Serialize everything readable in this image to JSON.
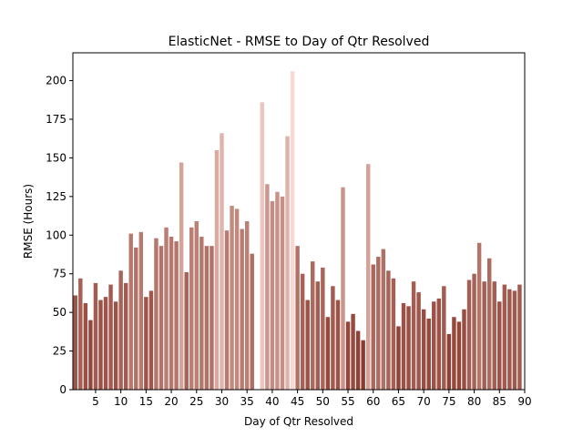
{
  "chart_data": {
    "type": "bar",
    "title": "ElasticNet - RMSE to Day of Qtr Resolved",
    "xlabel": "Day of Qtr Resolved",
    "ylabel": "RMSE (Hours)",
    "xlim": [
      0.5,
      90
    ],
    "ylim": [
      0,
      218
    ],
    "grid": false,
    "legend": "none",
    "x_ticks": [
      5,
      10,
      15,
      20,
      25,
      30,
      35,
      40,
      45,
      50,
      55,
      60,
      65,
      70,
      75,
      80,
      85,
      90
    ],
    "y_ticks": [
      0,
      25,
      50,
      75,
      100,
      125,
      150,
      175,
      200
    ],
    "x": [
      1,
      2,
      3,
      4,
      5,
      6,
      7,
      8,
      9,
      10,
      11,
      12,
      13,
      14,
      15,
      16,
      17,
      18,
      19,
      20,
      21,
      22,
      23,
      24,
      25,
      26,
      27,
      28,
      29,
      30,
      31,
      32,
      33,
      34,
      35,
      36,
      37,
      38,
      39,
      40,
      41,
      42,
      43,
      44,
      45,
      46,
      47,
      48,
      49,
      50,
      51,
      52,
      53,
      54,
      55,
      56,
      57,
      58,
      59,
      60,
      61,
      62,
      63,
      64,
      65,
      66,
      67,
      68,
      69,
      70,
      71,
      72,
      73,
      74,
      75,
      76,
      77,
      78,
      79,
      80,
      81,
      82,
      83,
      84,
      85,
      86,
      87,
      88,
      89
    ],
    "values": [
      61,
      72,
      56,
      45,
      69,
      58,
      60,
      68,
      57,
      77,
      69,
      101,
      92,
      102,
      60,
      64,
      98,
      93,
      105,
      99,
      96,
      147,
      76,
      105,
      109,
      99,
      93,
      93,
      155,
      166,
      103,
      119,
      117,
      104,
      109,
      88,
      0,
      186,
      133,
      122,
      128,
      125,
      164,
      206,
      93,
      75,
      58,
      83,
      70,
      79,
      47,
      67,
      58,
      131,
      44,
      49,
      38,
      32,
      146,
      81,
      86,
      91,
      77,
      72,
      41,
      56,
      54,
      70,
      63,
      52,
      46,
      57,
      59,
      67,
      36,
      47,
      44,
      52,
      71,
      75,
      95,
      70,
      85,
      70,
      57,
      68,
      65,
      64,
      68
    ],
    "colors": {
      "low": "#8c3b2f",
      "high": "#f9d8d1",
      "axis": "#000000"
    }
  }
}
